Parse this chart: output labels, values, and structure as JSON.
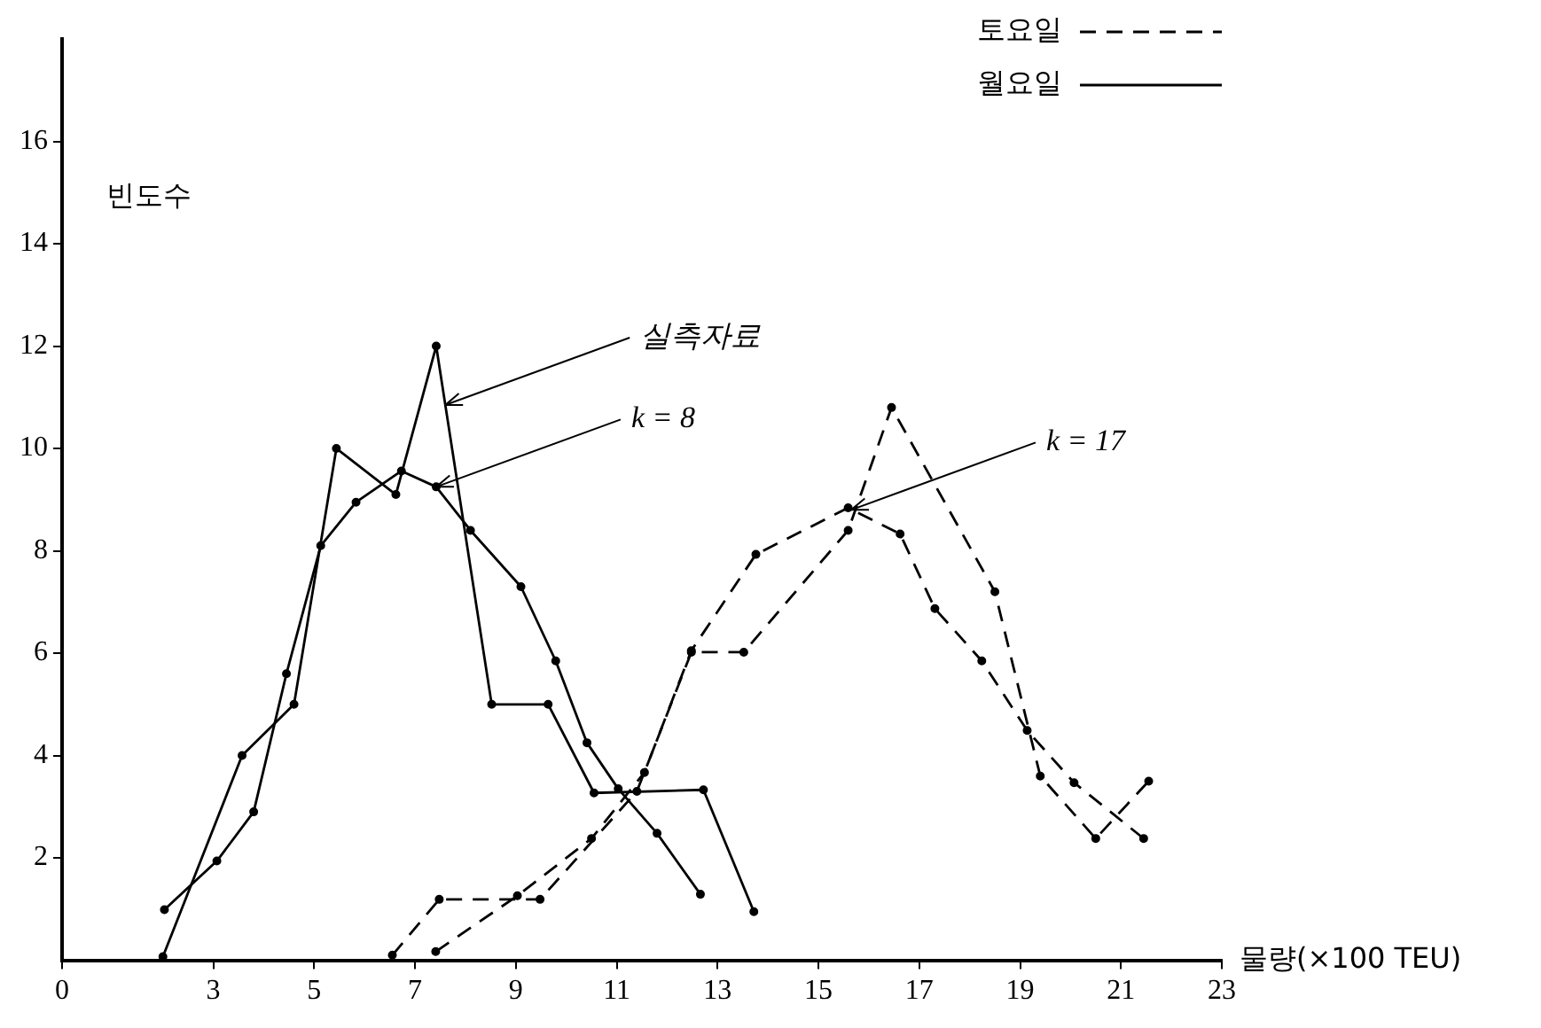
{
  "chart_data": {
    "type": "line",
    "xlabel": "물량(×100 TEU)",
    "ylabel": "빈도수",
    "xlim": [
      0,
      23
    ],
    "xticks": [
      0,
      3,
      5,
      7,
      9,
      11,
      13,
      15,
      17,
      19,
      21,
      23
    ],
    "ylim": [
      0,
      18
    ],
    "yticks": [
      2,
      4,
      6,
      8,
      10,
      12,
      14,
      16
    ],
    "grid": false,
    "legend": "top right",
    "marker": "circle",
    "series": [
      {
        "name": "토요일",
        "color": "#000000",
        "line_style": "dashed",
        "x": [
          6.55,
          7.48,
          9.48,
          11.4,
          12.48,
          13.52,
          15.59,
          16.45,
          18.5,
          19.4,
          20.5,
          21.55
        ],
        "values": [
          0.1,
          1.19,
          1.19,
          3.3,
          6.02,
          6.02,
          8.4,
          10.8,
          7.2,
          3.6,
          2.38,
          3.5
        ]
      },
      {
        "name": "월요일",
        "color": "#000000",
        "line_style": "solid",
        "x": [
          2.0,
          3.57,
          4.6,
          5.44,
          6.62,
          7.42,
          8.52,
          9.64,
          10.55,
          12.72,
          13.72
        ],
        "values": [
          0.07,
          4.0,
          5.0,
          10.0,
          9.1,
          12.0,
          5.0,
          5.0,
          3.27,
          3.33,
          0.95
        ]
      },
      {
        "color": "#000000",
        "line_style": "solid",
        "x": [
          2.03,
          3.07,
          3.8,
          4.45,
          5.13,
          5.83,
          6.73,
          7.42,
          8.1,
          9.1,
          9.79,
          10.41,
          11.03,
          11.8,
          12.66
        ],
        "values": [
          0.99,
          1.94,
          2.9,
          5.6,
          8.1,
          8.95,
          9.56,
          9.25,
          8.4,
          7.3,
          5.85,
          4.25,
          3.35,
          2.48,
          1.29
        ]
      },
      {
        "color": "#000000",
        "line_style": "dashed",
        "x": [
          7.41,
          9.03,
          10.5,
          11.55,
          12.48,
          13.76,
          15.59,
          16.62,
          17.31,
          18.24,
          19.14,
          20.07,
          21.45
        ],
        "values": [
          0.17,
          1.26,
          2.38,
          3.67,
          6.05,
          7.93,
          8.84,
          8.33,
          6.87,
          5.85,
          4.49,
          3.47,
          2.38
        ]
      }
    ],
    "annotations": [
      {
        "text": "실측자료",
        "x": 7.6,
        "y": 10.85
      },
      {
        "text": "k = 8",
        "x": 7.42,
        "y": 9.25
      },
      {
        "text": "k = 17",
        "x": 15.65,
        "y": 8.8
      }
    ]
  }
}
